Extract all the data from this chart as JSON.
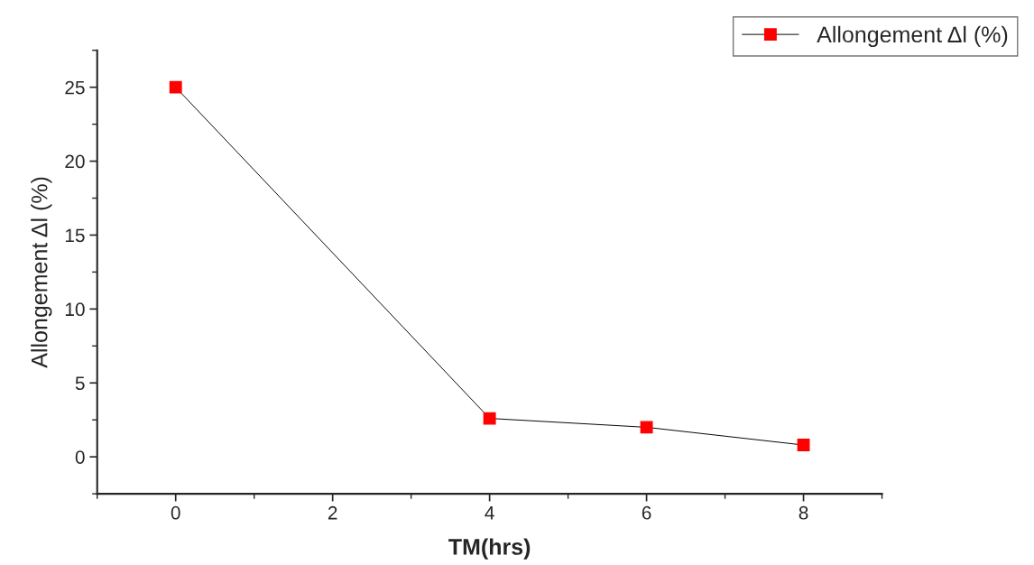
{
  "chart_data": {
    "type": "line",
    "xlabel": "TM(hrs)",
    "ylabel": "Allongement Δl (%)",
    "x": [
      0,
      4,
      6,
      8
    ],
    "series": [
      {
        "name": "Allongement Δl (%)",
        "color": "#ff0000",
        "values": [
          25,
          2.6,
          2.0,
          0.8
        ]
      }
    ],
    "xlim": [
      -1,
      9
    ],
    "xticks": [
      0,
      2,
      4,
      6,
      8
    ],
    "ylim": [
      -2.5,
      27.5
    ],
    "yticks": [
      0,
      5,
      10,
      15,
      20,
      25
    ],
    "grid": false,
    "legend": "top right",
    "marker": "square",
    "line_style": "solid"
  }
}
